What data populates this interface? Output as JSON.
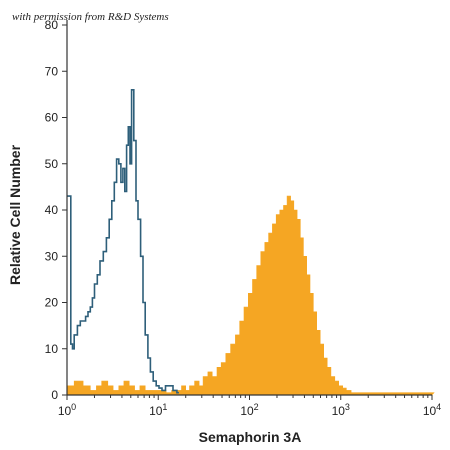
{
  "watermark": "with permission from R&D Systems",
  "chart_data": {
    "type": "area",
    "title": "",
    "xlabel": "Semaphorin 3A",
    "ylabel": "Relative Cell Number",
    "x_scale": "log",
    "xlim": [
      1,
      10000
    ],
    "ylim": [
      0,
      80
    ],
    "grid": false,
    "legend": "none",
    "x_ticks": [
      {
        "value": 1,
        "base": "10",
        "exp": "0"
      },
      {
        "value": 10,
        "base": "10",
        "exp": "1"
      },
      {
        "value": 100,
        "base": "10",
        "exp": "2"
      },
      {
        "value": 1000,
        "base": "10",
        "exp": "3"
      },
      {
        "value": 10000,
        "base": "10",
        "exp": "4"
      }
    ],
    "y_ticks": [
      "0",
      "10",
      "20",
      "30",
      "40",
      "50",
      "60",
      "70",
      "80"
    ],
    "series": [
      {
        "style": "outline",
        "color": "#2e5f7a",
        "x": [
          1,
          1.05,
          1.1,
          1.15,
          1.2,
          1.3,
          1.4,
          1.5,
          1.6,
          1.7,
          1.8,
          1.9,
          2.0,
          2.15,
          2.3,
          2.5,
          2.7,
          2.9,
          3.1,
          3.3,
          3.5,
          3.7,
          3.9,
          4.1,
          4.3,
          4.5,
          4.7,
          4.9,
          5.1,
          5.4,
          5.7,
          6.0,
          6.4,
          6.8,
          7.2,
          7.7,
          8.2,
          8.8,
          9.5,
          10.2,
          11,
          12,
          13,
          14.5,
          16
        ],
        "y": [
          43,
          43,
          11,
          10,
          13,
          15,
          16,
          16,
          17,
          18,
          19,
          21,
          24,
          26,
          29,
          31,
          34,
          38,
          42,
          46,
          51,
          50,
          46,
          49,
          44,
          54,
          58,
          50,
          66,
          55,
          42,
          38,
          30,
          20,
          13,
          8,
          5,
          3,
          2,
          1.5,
          1,
          2,
          2,
          1,
          0.5
        ]
      },
      {
        "style": "filled",
        "color": "#f5a623",
        "x": [
          1,
          1.2,
          1.5,
          1.8,
          2.1,
          2.4,
          2.8,
          3.2,
          3.7,
          4.2,
          4.8,
          5.5,
          6.3,
          7.2,
          8.2,
          9.4,
          10.7,
          12.2,
          14,
          16,
          18,
          20,
          22,
          25,
          28,
          31,
          35,
          39,
          44,
          49,
          55,
          62,
          70,
          78,
          87,
          97,
          108,
          120,
          133,
          147,
          162,
          178,
          196,
          215,
          236,
          258,
          282,
          306,
          332,
          360,
          390,
          423,
          460,
          500,
          545,
          595,
          650,
          710,
          780,
          860,
          950,
          1050,
          1150,
          1300,
          1500,
          2000,
          3000,
          5000,
          8000,
          10000
        ],
        "y": [
          2,
          3,
          2,
          1,
          2,
          3,
          2,
          1,
          2,
          3,
          2,
          1,
          2,
          1,
          1,
          1,
          1,
          0.5,
          1,
          1,
          2,
          1,
          2,
          3,
          2,
          4,
          5,
          4,
          6,
          7,
          9,
          11,
          13,
          16,
          19,
          22,
          25,
          28,
          31,
          33,
          35,
          37,
          39,
          40,
          41,
          43,
          42,
          40,
          38,
          34,
          30,
          26,
          22,
          18,
          14,
          11,
          8,
          6,
          4,
          3,
          2,
          1.5,
          1,
          0.5,
          0.5,
          0.5,
          0.5,
          0.5,
          0.5,
          0.5
        ]
      }
    ]
  }
}
